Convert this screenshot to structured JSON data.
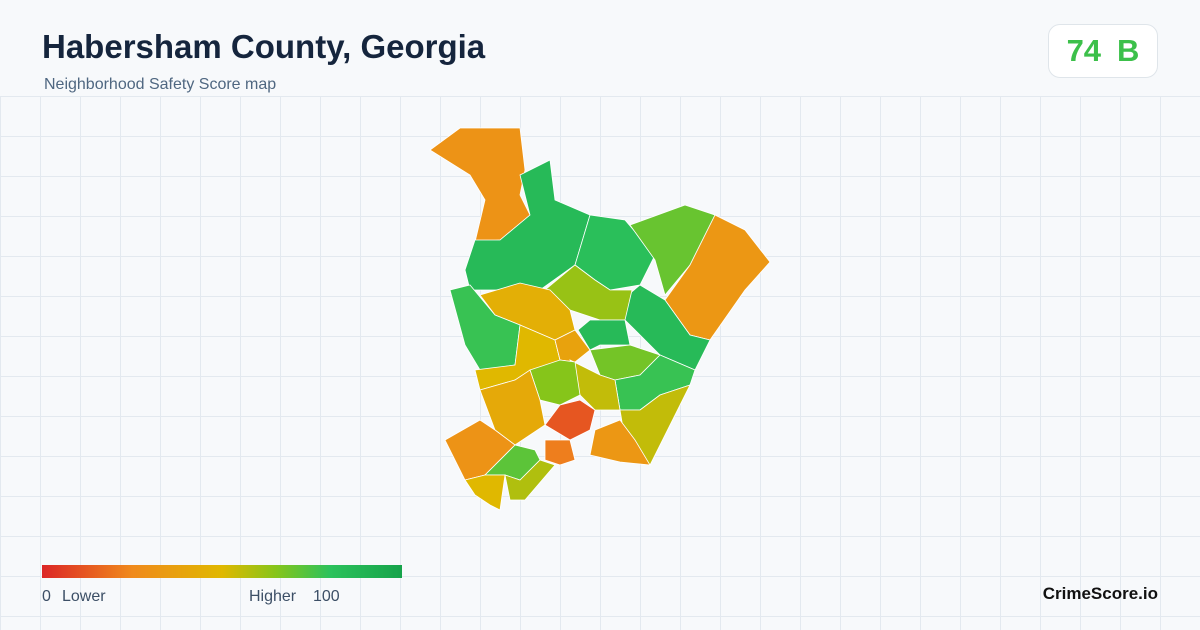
{
  "header": {
    "title": "Habersham County, Georgia",
    "subtitle": "Neighborhood Safety Score map"
  },
  "badge": {
    "score": "74",
    "grade": "B"
  },
  "map": {
    "scores": [
      30,
      85,
      82,
      70,
      32,
      85,
      62,
      45,
      78,
      50,
      38,
      85,
      68,
      78,
      55,
      65,
      42,
      30,
      12,
      55,
      32,
      22,
      72,
      50,
      58
    ]
  },
  "legend": {
    "min": 0,
    "min_label": "Lower",
    "max_label": "Higher",
    "max": 100
  },
  "footer": {
    "brand": "CrimeScore.io"
  }
}
